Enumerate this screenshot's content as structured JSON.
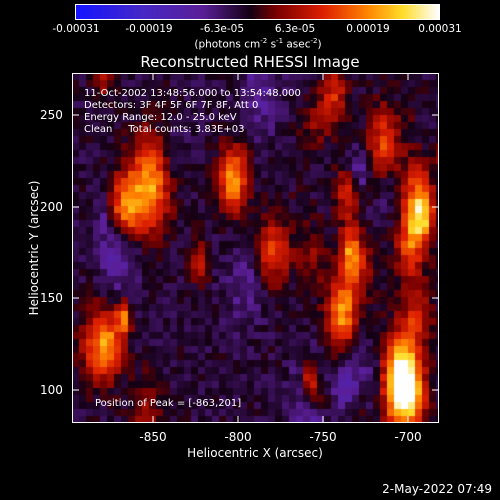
{
  "colorbar": {
    "ticks": [
      "-0.00031",
      "-0.00019",
      "-6.3e-05",
      "6.3e-05",
      "0.00019",
      "0.00031"
    ],
    "unit_main": "(photons cm",
    "unit_exp1": "-2",
    "unit_mid1": " s",
    "unit_exp2": "-1",
    "unit_mid2": " asec",
    "unit_exp3": "-2",
    "unit_end": ")"
  },
  "title": "Reconstructed RHESSI Image",
  "info": {
    "line1": "11-Oct-2002 13:48:56.000 to 13:54:48.000",
    "line2": "Detectors: 3F 4F 5F 6F 7F 8F, Att 0",
    "line3": "Energy Range: 12.0 - 25.0 keV",
    "line4": "Clean     Total counts: 3.83E+03",
    "peak": "Position of Peak = [-863,201]"
  },
  "axes": {
    "xlabel": "Heliocentric X (arcsec)",
    "ylabel": "Heliocentric Y (arcsec)",
    "xticks": [
      "-850",
      "-800",
      "-750",
      "-700"
    ],
    "yticks": [
      "250",
      "200",
      "150",
      "100"
    ]
  },
  "timestamp": "2-May-2022 07:49",
  "chart_data": {
    "type": "heatmap",
    "title": "Reconstructed RHESSI Image",
    "xlabel": "Heliocentric X (arcsec)",
    "ylabel": "Heliocentric Y (arcsec)",
    "xlim": [
      -890,
      -695
    ],
    "ylim": [
      85,
      275
    ],
    "colorbar_range": [
      -0.00031,
      0.00031
    ],
    "colormap": "blue-purple-red-yellow-white",
    "peak": [
      -863,
      201
    ]
  }
}
